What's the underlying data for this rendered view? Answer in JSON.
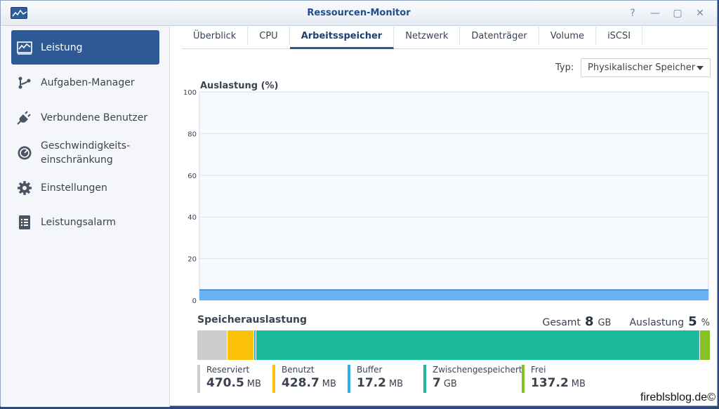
{
  "window": {
    "title": "Ressourcen-Monitor",
    "controls": [
      "?",
      "—",
      "▢",
      "✕"
    ]
  },
  "sidebar": {
    "items": [
      {
        "label": "Leistung",
        "icon": "chart-icon",
        "active": true
      },
      {
        "label": "Aufgaben-Manager",
        "icon": "tasks-icon"
      },
      {
        "label": "Verbundene Benutzer",
        "icon": "plug-icon"
      },
      {
        "label": "Geschwindigkeits-",
        "label2": "einschränkung",
        "icon": "speedometer-icon"
      },
      {
        "label": "Einstellungen",
        "icon": "gear-icon"
      },
      {
        "label": "Leistungsalarm",
        "icon": "list-icon"
      }
    ]
  },
  "tabs": [
    {
      "label": "Überblick"
    },
    {
      "label": "CPU"
    },
    {
      "label": "Arbeitsspeicher",
      "active": true
    },
    {
      "label": "Netzwerk"
    },
    {
      "label": "Datenträger"
    },
    {
      "label": "Volume"
    },
    {
      "label": "iSCSI"
    }
  ],
  "type": {
    "label": "Typ:",
    "selected": "Physikalischer Speicher"
  },
  "chart_data": {
    "type": "area",
    "title": "Auslastung (%)",
    "ylim": [
      0,
      100
    ],
    "yticks": [
      0,
      20,
      40,
      60,
      80,
      100
    ],
    "grid": true,
    "series": [
      {
        "values": [
          5,
          5,
          5,
          5,
          5,
          5,
          5,
          5,
          5,
          5,
          5,
          5,
          5,
          5,
          5,
          5,
          5,
          5,
          5,
          5
        ]
      }
    ],
    "fill_color": "#5aa9ee",
    "line_color": "#2f7fd6"
  },
  "memory": {
    "title": "Speicherauslastung",
    "total_label": "Gesamt",
    "total_value": "8",
    "total_unit": "GB",
    "usage_label": "Auslastung",
    "usage_value": "5",
    "usage_unit": "%",
    "segments": [
      {
        "name": "Reserviert",
        "value": "470.5",
        "unit": "MB",
        "mb": 470.5,
        "color": "#cccccc"
      },
      {
        "name": "Benutzt",
        "value": "428.7",
        "unit": "MB",
        "mb": 428.7,
        "color": "#fcc20a"
      },
      {
        "name": "Buffer",
        "value": "17.2",
        "unit": "MB",
        "mb": 17.2,
        "color": "#29b0e8"
      },
      {
        "name": "Zwischengespeichert",
        "value": "7",
        "unit": "GB",
        "mb": 7168,
        "color": "#1cbc9b"
      },
      {
        "name": "Frei",
        "value": "137.2",
        "unit": "MB",
        "mb": 137.2,
        "color": "#86c224"
      }
    ]
  },
  "watermark": "fireblsblog.de©"
}
